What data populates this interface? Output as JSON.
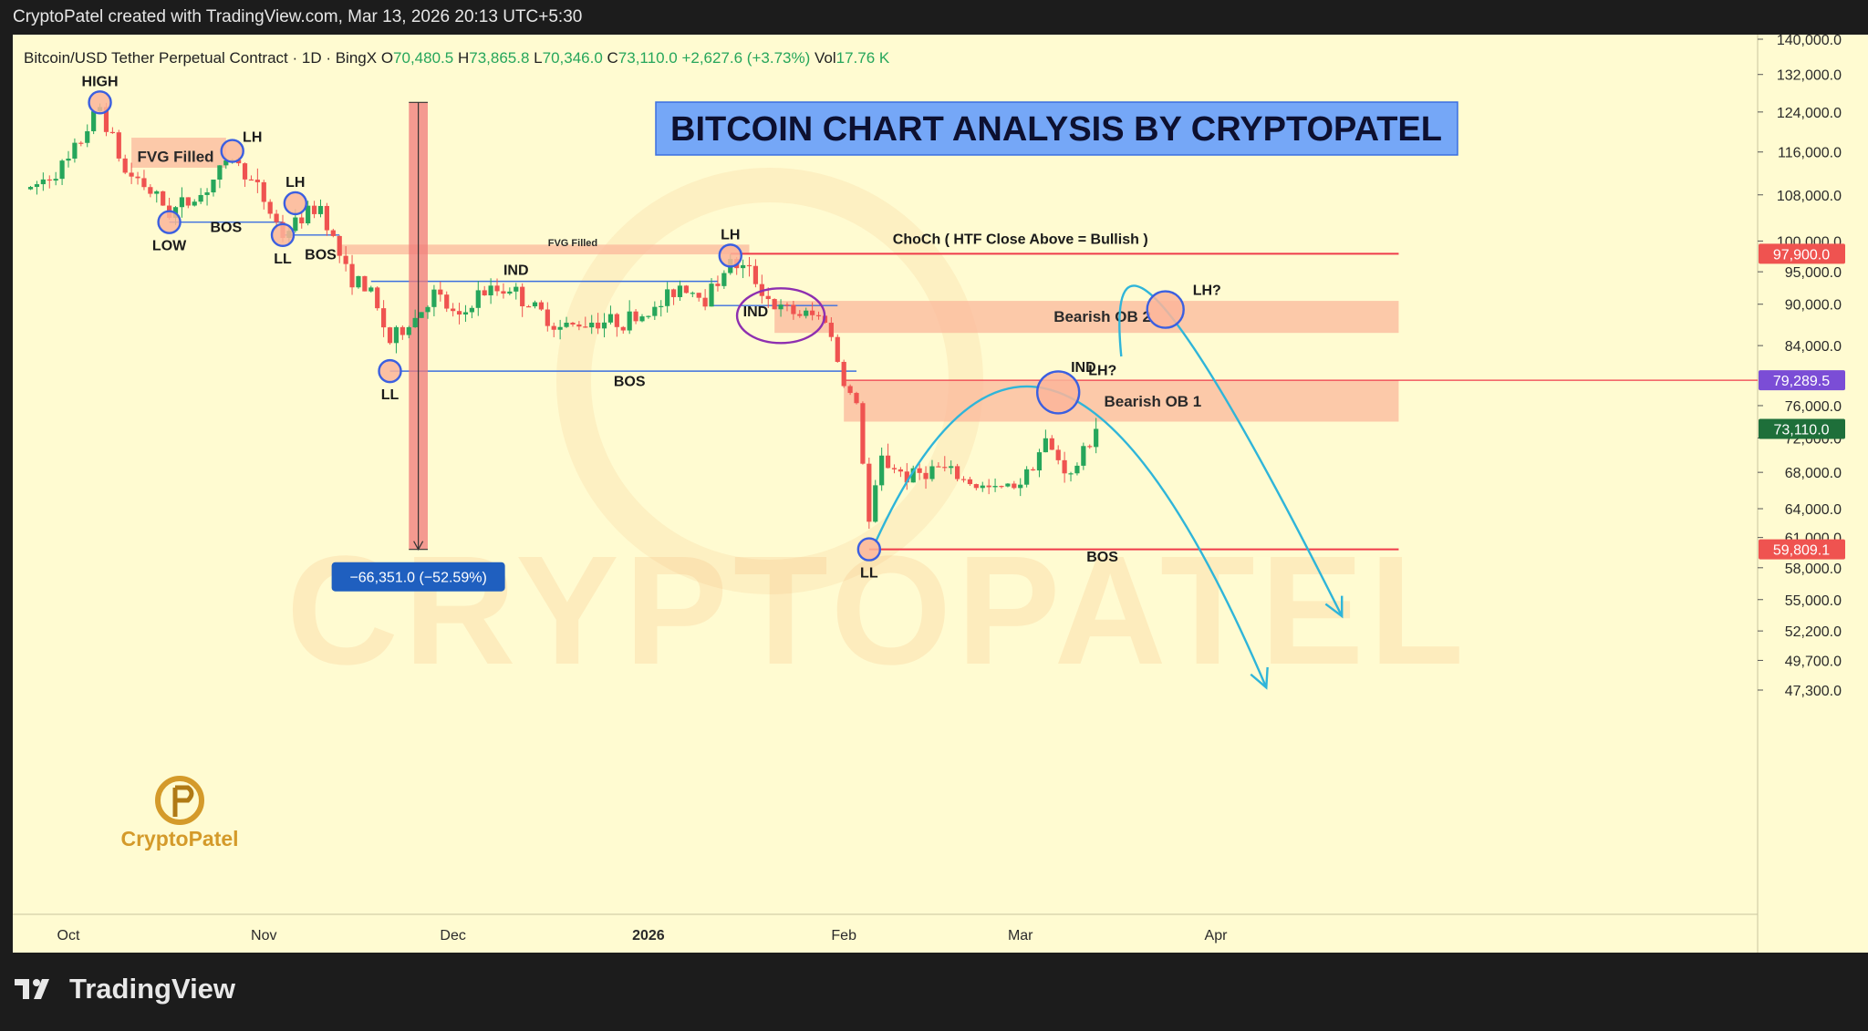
{
  "header": {
    "credit": "CryptoPatel created with TradingView.com, Mar 13, 2026 20:13 UTC+5:30"
  },
  "footer": {
    "brand": "TradingView"
  },
  "legend": {
    "symbol": "Bitcoin/USD Tether Perpetual Contract · 1D · BingX",
    "open_label": "O",
    "open": "70,480.5",
    "high_label": "H",
    "high": "73,865.8",
    "low_label": "L",
    "low": "70,346.0",
    "close_label": "C",
    "close": "73,110.0",
    "change": "+2,627.6 (+3.73%)",
    "vol_label": "Vol",
    "vol": "17.76 K"
  },
  "colors": {
    "chart_bg": "#fffbd1",
    "up": "#26a65b",
    "down": "#ef5350",
    "zone": "#fbb59a",
    "title_bg": "#75a7f7",
    "blue_line": "#3b6fe0",
    "red_line": "#ef3b4a",
    "arc": "#2fb5d9",
    "price_red": "#ef5350",
    "price_purple": "#7b4dd6",
    "price_green": "#1e6f3a"
  },
  "chart_data": {
    "type": "candlestick",
    "title": "BITCOIN CHART ANALYSIS BY CRYPTOPATEL",
    "y_scale": "log",
    "ylim": [
      45000,
      150000
    ],
    "x_range": [
      "2025-09-25",
      "2026-04-30"
    ],
    "x_ticks": [
      {
        "date": "2025-10-01",
        "label": "Oct",
        "bold": false
      },
      {
        "date": "2025-11-01",
        "label": "Nov",
        "bold": false
      },
      {
        "date": "2025-12-01",
        "label": "Dec",
        "bold": false
      },
      {
        "date": "2026-01-01",
        "label": "2026",
        "bold": true
      },
      {
        "date": "2026-02-01",
        "label": "Feb",
        "bold": false
      },
      {
        "date": "2026-03-01",
        "label": "Mar",
        "bold": false
      },
      {
        "date": "2026-04-01",
        "label": "Apr",
        "bold": false
      }
    ],
    "y_ticks": [
      {
        "value": 140000,
        "label": "140,000.0"
      },
      {
        "value": 132000,
        "label": "132,000.0"
      },
      {
        "value": 124000,
        "label": "124,000.0"
      },
      {
        "value": 116000,
        "label": "116,000.0"
      },
      {
        "value": 108000,
        "label": "108,000.0"
      },
      {
        "value": 100000,
        "label": "100,000.0"
      },
      {
        "value": 95000,
        "label": "95,000.0"
      },
      {
        "value": 90000,
        "label": "90,000.0"
      },
      {
        "value": 84000,
        "label": "84,000.0"
      },
      {
        "value": 76000,
        "label": "76,000.0"
      },
      {
        "value": 72000,
        "label": "72,000.0"
      },
      {
        "value": 68000,
        "label": "68,000.0"
      },
      {
        "value": 64000,
        "label": "64,000.0"
      },
      {
        "value": 61000,
        "label": "61,000.0"
      },
      {
        "value": 58000,
        "label": "58,000.0"
      },
      {
        "value": 55000,
        "label": "55,000.0"
      },
      {
        "value": 52200,
        "label": "52,200.0"
      },
      {
        "value": 49700,
        "label": "49,700.0"
      },
      {
        "value": 47300,
        "label": "47,300.0"
      }
    ],
    "price_tags": [
      {
        "value": 97900,
        "label": "97,900.0",
        "color": "#ef5350"
      },
      {
        "value": 79289.5,
        "label": "79,289.5",
        "color": "#7b4dd6"
      },
      {
        "value": 73110,
        "label": "73,110.0",
        "color": "#1e6f3a"
      },
      {
        "value": 59809.1,
        "label": "59,809.1",
        "color": "#ef5350"
      }
    ],
    "path_points": [
      [
        "2025-09-25",
        109000
      ],
      [
        "2025-10-01",
        114000
      ],
      [
        "2025-10-06",
        125000
      ],
      [
        "2025-10-10",
        112000
      ],
      [
        "2025-10-12",
        111000
      ],
      [
        "2025-10-17",
        105000
      ],
      [
        "2025-10-22",
        108000
      ],
      [
        "2025-10-27",
        115000
      ],
      [
        "2025-10-31",
        109000
      ],
      [
        "2025-11-04",
        101000
      ],
      [
        "2025-11-07",
        104000
      ],
      [
        "2025-11-10",
        106000
      ],
      [
        "2025-11-14",
        95000
      ],
      [
        "2025-11-18",
        91500
      ],
      [
        "2025-11-21",
        84500
      ],
      [
        "2025-11-25",
        88000
      ],
      [
        "2025-11-28",
        91500
      ],
      [
        "2025-12-02",
        87500
      ],
      [
        "2025-12-05",
        91500
      ],
      [
        "2025-12-10",
        92500
      ],
      [
        "2025-12-13",
        90000
      ],
      [
        "2025-12-18",
        86500
      ],
      [
        "2025-12-23",
        87500
      ],
      [
        "2025-12-28",
        87500
      ],
      [
        "2026-01-02",
        89000
      ],
      [
        "2026-01-06",
        93000
      ],
      [
        "2026-01-10",
        91000
      ],
      [
        "2026-01-14",
        96500
      ],
      [
        "2026-01-17",
        95000
      ],
      [
        "2026-01-21",
        89500
      ],
      [
        "2026-01-25",
        88500
      ],
      [
        "2026-01-29",
        88000
      ],
      [
        "2026-02-01",
        79000
      ],
      [
        "2026-02-03",
        76000
      ],
      [
        "2026-02-05",
        62500
      ],
      [
        "2026-02-07",
        69500
      ],
      [
        "2026-02-11",
        67500
      ],
      [
        "2026-02-16",
        68500
      ],
      [
        "2026-02-22",
        66500
      ],
      [
        "2026-02-25",
        66000
      ],
      [
        "2026-03-01",
        67000
      ],
      [
        "2026-03-05",
        71500
      ],
      [
        "2026-03-09",
        67500
      ],
      [
        "2026-03-13",
        73110
      ]
    ],
    "zones": [
      {
        "name": "FVG Filled",
        "label": "FVG Filled",
        "from": "2025-10-11",
        "to": "2025-10-26",
        "low": 113000,
        "high": 118800
      },
      {
        "name": "FVG Filled 2",
        "label": "FVG Filled",
        "from": "2025-11-13",
        "to": "2026-01-17",
        "low": 97800,
        "high": 99400
      },
      {
        "name": "Bearish OB 2",
        "label": "Bearish OB 2",
        "from": "2026-01-21",
        "to": "2026-04-30",
        "low": 85800,
        "high": 90500
      },
      {
        "name": "Bearish OB 1",
        "label": "Bearish OB 1",
        "from": "2026-02-01",
        "to": "2026-04-30",
        "low": 74000,
        "high": 79289.5
      }
    ],
    "annotations": [
      {
        "label": "HIGH",
        "date": "2025-10-06",
        "price": 126000
      },
      {
        "label": "LH",
        "date": "2025-10-27",
        "price": 116200
      },
      {
        "label": "LH",
        "date": "2025-11-06",
        "price": 106500
      },
      {
        "label": "LOW",
        "date": "2025-10-17",
        "price": 103200
      },
      {
        "label": "LL",
        "date": "2025-11-04",
        "price": 101000
      },
      {
        "label": "LL",
        "date": "2025-11-21",
        "price": 80500
      },
      {
        "label": "LH",
        "date": "2026-01-14",
        "price": 97600
      },
      {
        "label": "LL",
        "date": "2026-02-05",
        "price": 59809.1
      },
      {
        "label": "LH?",
        "date": "2026-03-07",
        "price": 77700
      },
      {
        "label": "LH?",
        "date": "2026-03-24",
        "price": 89200
      }
    ],
    "texts": [
      {
        "text": "BOS",
        "date": "2025-10-26",
        "price": 101500
      },
      {
        "text": "BOS",
        "date": "2025-11-10",
        "price": 97000
      },
      {
        "text": "IND",
        "date": "2025-12-11",
        "price": 94500
      },
      {
        "text": "BOS",
        "date": "2025-12-29",
        "price": 78500
      },
      {
        "text": "IND",
        "date": "2026-01-18",
        "price": 88200
      },
      {
        "text": "ChoCh ( HTF Close Above = Bullish )",
        "date": "2026-03-01",
        "price": 99500
      },
      {
        "text": "IND",
        "date": "2026-03-11",
        "price": 80400
      },
      {
        "text": "BOS",
        "date": "2026-03-14",
        "price": 58600
      }
    ],
    "level_lines": [
      {
        "name": "BOS 1",
        "price": 103200,
        "from": "2025-10-17",
        "to": "2025-11-04"
      },
      {
        "name": "BOS 2",
        "price": 101000,
        "from": "2025-11-04",
        "to": "2025-11-13"
      },
      {
        "name": "IND 1",
        "price": 93500,
        "from": "2025-11-18",
        "to": "2026-01-12"
      },
      {
        "name": "BOS 3",
        "price": 80500,
        "from": "2025-11-21",
        "to": "2026-02-03"
      },
      {
        "name": "IND 2",
        "price": 89800,
        "from": "2026-01-11",
        "to": "2026-01-31"
      },
      {
        "name": "ChoCh",
        "price": 97900,
        "from": "2026-01-14",
        "to": "2026-04-30"
      },
      {
        "name": "BOS 4",
        "price": 59809.1,
        "from": "2026-02-05",
        "to": "2026-04-30"
      }
    ],
    "measure": {
      "from": "2025-11-24",
      "to": "2025-11-27",
      "high": 126000,
      "low": 59800,
      "label": "−66,351.0 (−52.59%)"
    },
    "projections": [
      {
        "name": "arc-to-ob1",
        "points": [
          [
            "2026-02-06",
            60500
          ],
          [
            "2026-03-07",
            77700
          ],
          [
            "2026-04-09",
            47500
          ]
        ]
      },
      {
        "name": "arc-to-ob2",
        "points": [
          [
            "2026-03-17",
            82500
          ],
          [
            "2026-03-24",
            89200
          ],
          [
            "2026-04-21",
            53500
          ]
        ]
      }
    ],
    "watermark": "CRYPTOPATEL",
    "logo_text": "CryptoPatel"
  }
}
